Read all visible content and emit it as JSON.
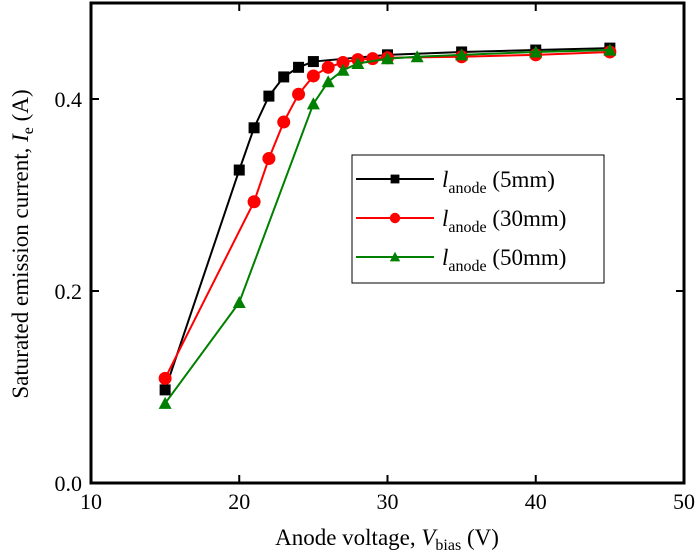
{
  "chart_data": {
    "type": "line",
    "title": "",
    "xlabel": {
      "main": "Anode voltage, ",
      "var": "V",
      "sub": "bias",
      "unit": " (V)"
    },
    "ylabel": {
      "main": "Saturated emission current, ",
      "var": "I",
      "sub": "e",
      "unit": " (A)"
    },
    "xlim": [
      10,
      50
    ],
    "ylim": [
      0.0,
      0.48
    ],
    "xticks": [
      10,
      20,
      30,
      40,
      50
    ],
    "xtick_labels": [
      "10",
      "20",
      "30",
      "40",
      "50"
    ],
    "yticks": [
      0.0,
      0.2,
      0.4
    ],
    "ytick_labels": [
      "0.0",
      "0.2",
      "0.4"
    ],
    "grid": false,
    "legend_position": "center-right",
    "series": [
      {
        "name": "l_anode (5mm)",
        "legend_var": "l",
        "legend_sub": "anode",
        "legend_rest": " (5mm)",
        "color": "#000000",
        "marker": "square",
        "x": [
          15,
          20,
          21,
          22,
          23,
          24,
          25,
          30,
          35,
          40,
          45
        ],
        "y": [
          0.097,
          0.326,
          0.37,
          0.403,
          0.423,
          0.433,
          0.439,
          0.446,
          0.449,
          0.451,
          0.453
        ]
      },
      {
        "name": "l_anode (30mm)",
        "legend_var": "l",
        "legend_sub": "anode",
        "legend_rest": " (30mm)",
        "color": "#ff0000",
        "marker": "circle",
        "x": [
          15,
          21,
          22,
          23,
          24,
          25,
          26,
          27,
          28,
          29,
          30,
          35,
          40,
          45
        ],
        "y": [
          0.109,
          0.293,
          0.338,
          0.376,
          0.405,
          0.424,
          0.433,
          0.438,
          0.441,
          0.442,
          0.443,
          0.444,
          0.446,
          0.449
        ]
      },
      {
        "name": "l_anode (50mm)",
        "legend_var": "l",
        "legend_sub": "anode",
        "legend_rest": " (50mm)",
        "color": "#008000",
        "marker": "triangle",
        "x": [
          15,
          20,
          25,
          26,
          27,
          28,
          30,
          32,
          35,
          40,
          45
        ],
        "y": [
          0.083,
          0.188,
          0.395,
          0.418,
          0.43,
          0.437,
          0.442,
          0.444,
          0.446,
          0.449,
          0.451
        ]
      }
    ]
  }
}
